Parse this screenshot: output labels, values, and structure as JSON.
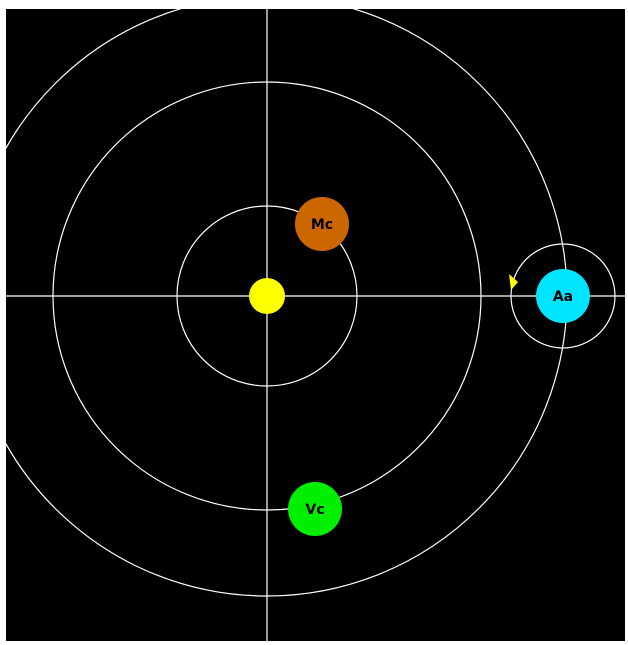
{
  "scene": {
    "background": "#000000",
    "line_color": "#ffffff",
    "sun": {
      "name": "sun",
      "color": "#ffff00"
    },
    "planets": [
      {
        "id": "mc",
        "label": "Mc",
        "color": "#cc6600"
      },
      {
        "id": "vc",
        "label": "Vc",
        "color": "#00ee00"
      },
      {
        "id": "aa",
        "label": "Aa",
        "color": "#00e5ff"
      }
    ],
    "ship": {
      "name": "ship-marker",
      "color": "#ffff00"
    }
  }
}
